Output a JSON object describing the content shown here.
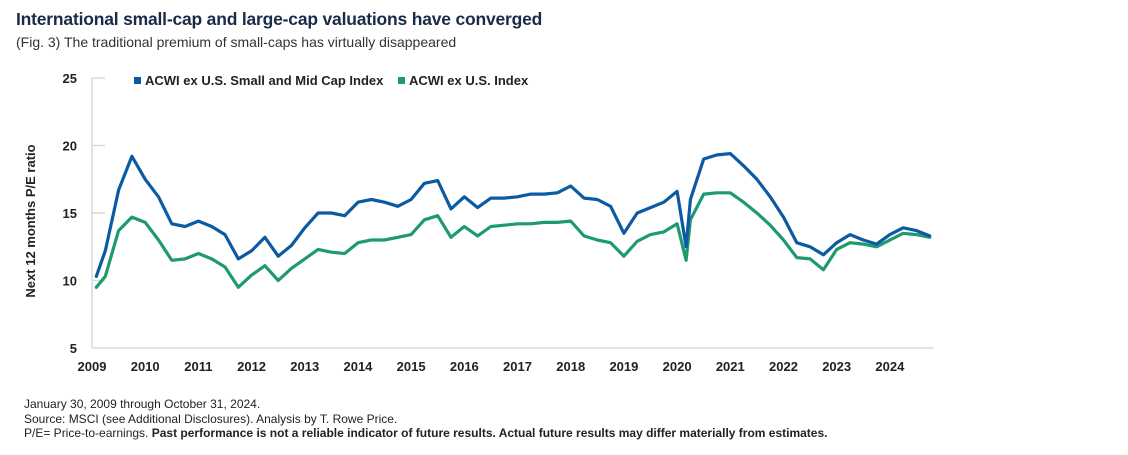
{
  "header": {
    "title": "International small-cap and large-cap valuations have converged",
    "subtitle": "(Fig. 3) The traditional premium of small-caps has virtually disappeared"
  },
  "footer": {
    "date_range": "January 30, 2009 through October 31, 2024.",
    "source": "Source: MSCI (see Additional Disclosures). Analysis by T. Rowe Price.",
    "pe_definition": "P/E= Price-to-earnings.",
    "disclaimer": "Past performance is not a reliable indicator of future results. Actual future results may differ materially from estimates."
  },
  "chart_data": {
    "type": "line",
    "title": "International small-cap and large-cap valuations have converged",
    "subtitle": "(Fig. 3) The traditional premium of small-caps has virtually disappeared",
    "xlabel": "",
    "ylabel": "Next 12 months P/E ratio",
    "ylim": [
      5,
      25
    ],
    "yticks": [
      5,
      10,
      15,
      20,
      25
    ],
    "xlim": [
      2009.0,
      2024.83
    ],
    "xticks": [
      "2009",
      "2010",
      "2011",
      "2012",
      "2013",
      "2014",
      "2015",
      "2016",
      "2017",
      "2018",
      "2019",
      "2020",
      "2021",
      "2022",
      "2023",
      "2024"
    ],
    "grid": false,
    "legend": "top-left",
    "x": [
      2009.08,
      2009.25,
      2009.5,
      2009.75,
      2010.0,
      2010.25,
      2010.5,
      2010.75,
      2011.0,
      2011.25,
      2011.5,
      2011.75,
      2012.0,
      2012.25,
      2012.5,
      2012.75,
      2013.0,
      2013.25,
      2013.5,
      2013.75,
      2014.0,
      2014.25,
      2014.5,
      2014.75,
      2015.0,
      2015.25,
      2015.5,
      2015.75,
      2016.0,
      2016.25,
      2016.5,
      2016.75,
      2017.0,
      2017.25,
      2017.5,
      2017.75,
      2018.0,
      2018.25,
      2018.5,
      2018.75,
      2019.0,
      2019.25,
      2019.5,
      2019.75,
      2020.0,
      2020.17,
      2020.25,
      2020.5,
      2020.75,
      2021.0,
      2021.25,
      2021.5,
      2021.75,
      2022.0,
      2022.25,
      2022.5,
      2022.75,
      2023.0,
      2023.25,
      2023.5,
      2023.75,
      2024.0,
      2024.25,
      2024.5,
      2024.75
    ],
    "series": [
      {
        "name": "ACWI ex U.S. Small and Mid Cap Index",
        "color": "#0b5aa2",
        "values": [
          10.3,
          12.2,
          16.7,
          19.2,
          17.5,
          16.2,
          14.2,
          14.0,
          14.4,
          14.0,
          13.4,
          11.6,
          12.2,
          13.2,
          11.8,
          12.6,
          13.9,
          15.0,
          15.0,
          14.8,
          15.8,
          16.0,
          15.8,
          15.5,
          16.0,
          17.2,
          17.4,
          15.3,
          16.2,
          15.4,
          16.1,
          16.1,
          16.2,
          16.4,
          16.4,
          16.5,
          17.0,
          16.1,
          16.0,
          15.5,
          13.5,
          15.0,
          15.4,
          15.8,
          16.6,
          12.5,
          16.0,
          19.0,
          19.3,
          19.4,
          18.5,
          17.5,
          16.2,
          14.7,
          12.8,
          12.5,
          11.9,
          12.8,
          13.4,
          13.0,
          12.7,
          13.4,
          13.9,
          13.7,
          13.3
        ]
      },
      {
        "name": "ACWI ex U.S. Index",
        "color": "#1f9a6e",
        "values": [
          9.5,
          10.3,
          13.7,
          14.7,
          14.3,
          13.0,
          11.5,
          11.6,
          12.0,
          11.6,
          11.0,
          9.5,
          10.4,
          11.1,
          10.0,
          10.9,
          11.6,
          12.3,
          12.1,
          12.0,
          12.8,
          13.0,
          13.0,
          13.2,
          13.4,
          14.5,
          14.8,
          13.2,
          14.0,
          13.3,
          14.0,
          14.1,
          14.2,
          14.2,
          14.3,
          14.3,
          14.4,
          13.3,
          13.0,
          12.8,
          11.8,
          12.9,
          13.4,
          13.6,
          14.2,
          11.5,
          14.5,
          16.4,
          16.5,
          16.5,
          15.8,
          15.0,
          14.1,
          13.0,
          11.7,
          11.6,
          10.8,
          12.3,
          12.8,
          12.7,
          12.5,
          13.0,
          13.5,
          13.4,
          13.2
        ]
      }
    ]
  }
}
